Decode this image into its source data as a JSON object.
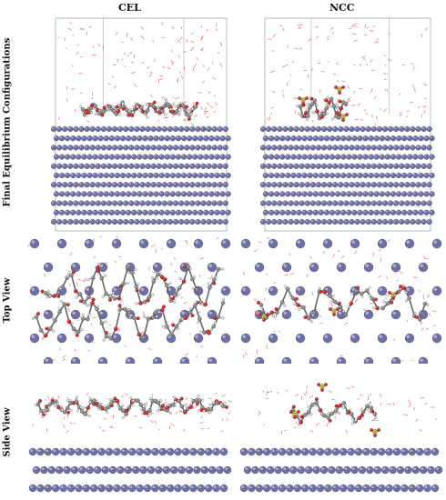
{
  "columns": {
    "left": "CEL",
    "right": "NCC"
  },
  "rows": {
    "final": "Final Equilibrium Configurations",
    "top": "Top View",
    "side": "Side View"
  },
  "colors": {
    "metal_atom": "#6f6fa8",
    "carbon": "#8a8a8a",
    "oxygen": "#d42020",
    "hydrogen": "#efefef",
    "sulfur": "#d8c818",
    "water": "#e05a5a",
    "box": "#9a9a9a"
  }
}
